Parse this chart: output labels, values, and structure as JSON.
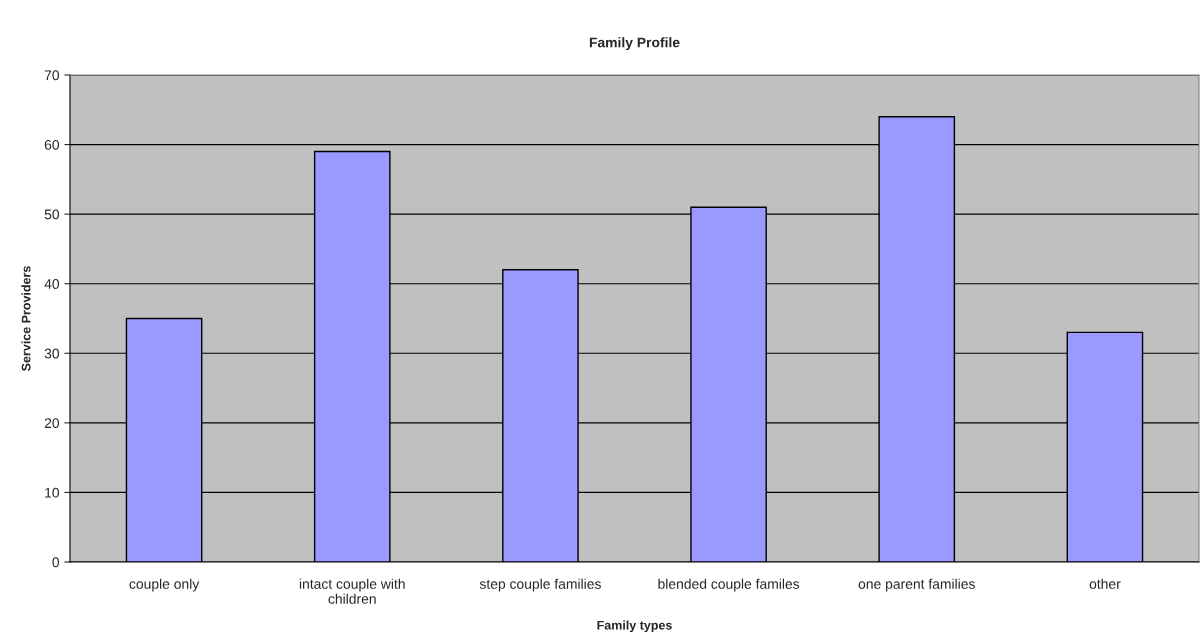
{
  "chart_data": {
    "type": "bar",
    "title": "Family Profile",
    "xlabel": "Family types",
    "ylabel": "Service Providers",
    "categories": [
      "couple only",
      "intact couple with\nchildren",
      "step couple families",
      "blended couple familes",
      "one parent families",
      "other"
    ],
    "values": [
      35,
      59,
      42,
      51,
      64,
      33
    ],
    "color": "#9999ff",
    "ylim": [
      0,
      70
    ],
    "yticks": [
      0,
      10,
      20,
      30,
      40,
      50,
      60,
      70
    ],
    "grid": "y",
    "legend": false
  }
}
